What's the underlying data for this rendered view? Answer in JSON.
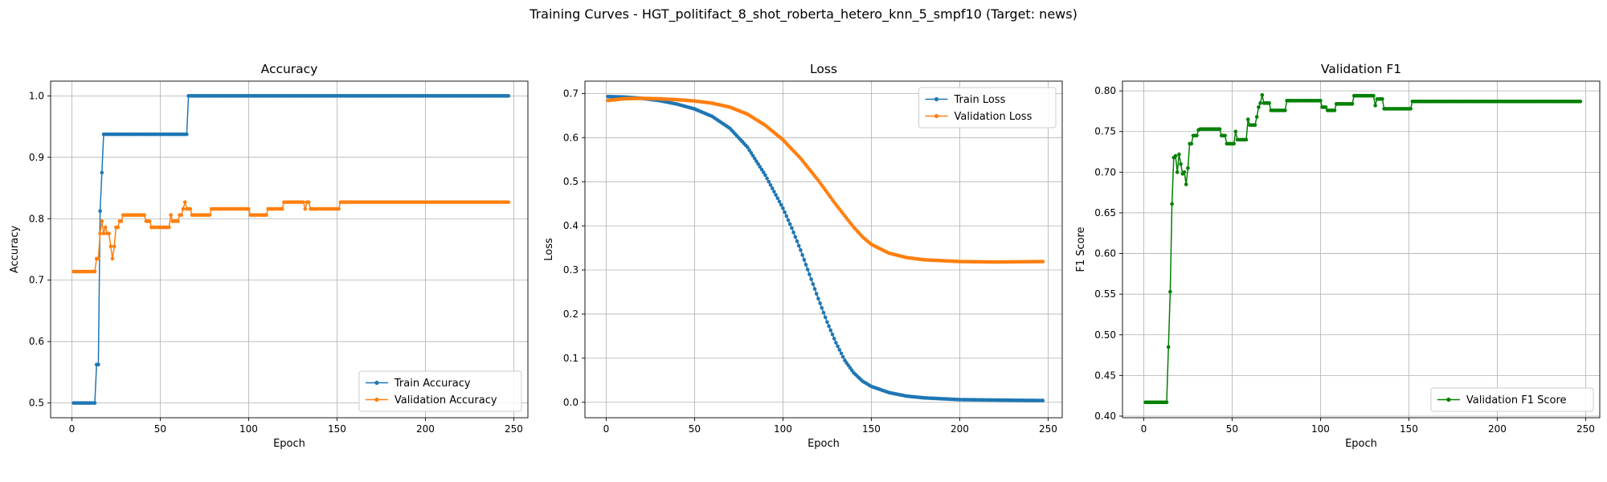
{
  "figure": {
    "suptitle": "Training Curves - HGT_politifact_8_shot_roberta_hetero_knn_5_smpf10 (Target: news)"
  },
  "chart_data": [
    {
      "type": "line",
      "title": "Accuracy",
      "xlabel": "Epoch",
      "ylabel": "Accuracy",
      "xlim": [
        -12,
        258
      ],
      "ylim": [
        0.476,
        1.024
      ],
      "xticks": [
        0,
        50,
        100,
        150,
        200,
        250
      ],
      "yticks": [
        0.5,
        0.6,
        0.7,
        0.8,
        0.9,
        1.0
      ],
      "ytick_decimals": 1,
      "grid": true,
      "legend_position": "lower-right",
      "epochs": 247,
      "series": [
        {
          "name": "Train Accuracy",
          "color": "#1f77b4",
          "segments": [
            [
              1,
              0.5
            ],
            [
              13,
              0.5
            ],
            [
              14,
              0.5625
            ],
            [
              15,
              0.5625
            ],
            [
              16,
              0.8125
            ],
            [
              17,
              0.875
            ],
            [
              18,
              0.9375
            ],
            [
              65,
              0.9375
            ],
            [
              66,
              1.0
            ],
            [
              247,
              1.0
            ]
          ]
        },
        {
          "name": "Validation Accuracy",
          "color": "#ff7f0e",
          "segments": [
            [
              1,
              0.714
            ],
            [
              13,
              0.714
            ],
            [
              14,
              0.735
            ],
            [
              15,
              0.735
            ],
            [
              16,
              0.776
            ],
            [
              17,
              0.796
            ],
            [
              18,
              0.776
            ],
            [
              19,
              0.786
            ],
            [
              20,
              0.776
            ],
            [
              22,
              0.755
            ],
            [
              23,
              0.735
            ],
            [
              24,
              0.755
            ],
            [
              25,
              0.786
            ],
            [
              27,
              0.796
            ],
            [
              29,
              0.806
            ],
            [
              41,
              0.806
            ],
            [
              42,
              0.796
            ],
            [
              45,
              0.786
            ],
            [
              55,
              0.786
            ],
            [
              56,
              0.806
            ],
            [
              57,
              0.796
            ],
            [
              61,
              0.806
            ],
            [
              63,
              0.816
            ],
            [
              64,
              0.827
            ],
            [
              65,
              0.816
            ],
            [
              68,
              0.806
            ],
            [
              78,
              0.806
            ],
            [
              79,
              0.816
            ],
            [
              100,
              0.816
            ],
            [
              101,
              0.806
            ],
            [
              110,
              0.806
            ],
            [
              111,
              0.816
            ],
            [
              119,
              0.816
            ],
            [
              120,
              0.827
            ],
            [
              131,
              0.827
            ],
            [
              132,
              0.816
            ],
            [
              133,
              0.827
            ],
            [
              135,
              0.816
            ],
            [
              151,
              0.816
            ],
            [
              152,
              0.827
            ],
            [
              247,
              0.827
            ]
          ]
        }
      ]
    },
    {
      "type": "line",
      "title": "Loss",
      "xlabel": "Epoch",
      "ylabel": "Loss",
      "xlim": [
        -12,
        258
      ],
      "ylim": [
        -0.035,
        0.728
      ],
      "xticks": [
        0,
        50,
        100,
        150,
        200,
        250
      ],
      "yticks": [
        0.0,
        0.1,
        0.2,
        0.3,
        0.4,
        0.5,
        0.6,
        0.7
      ],
      "ytick_decimals": 1,
      "grid": true,
      "legend_position": "upper-right",
      "epochs": 247,
      "series": [
        {
          "name": "Train Loss",
          "color": "#1f77b4",
          "curve": [
            [
              1,
              0.693
            ],
            [
              10,
              0.692
            ],
            [
              20,
              0.689
            ],
            [
              30,
              0.684
            ],
            [
              40,
              0.676
            ],
            [
              50,
              0.665
            ],
            [
              60,
              0.648
            ],
            [
              70,
              0.621
            ],
            [
              80,
              0.578
            ],
            [
              90,
              0.515
            ],
            [
              100,
              0.44
            ],
            [
              105,
              0.395
            ],
            [
              110,
              0.345
            ],
            [
              115,
              0.29
            ],
            [
              120,
              0.235
            ],
            [
              125,
              0.182
            ],
            [
              130,
              0.135
            ],
            [
              135,
              0.095
            ],
            [
              140,
              0.067
            ],
            [
              145,
              0.048
            ],
            [
              150,
              0.036
            ],
            [
              160,
              0.022
            ],
            [
              170,
              0.014
            ],
            [
              180,
              0.01
            ],
            [
              190,
              0.008
            ],
            [
              200,
              0.006
            ],
            [
              220,
              0.005
            ],
            [
              247,
              0.004
            ]
          ]
        },
        {
          "name": "Validation Loss",
          "color": "#ff7f0e",
          "curve": [
            [
              1,
              0.684
            ],
            [
              10,
              0.688
            ],
            [
              20,
              0.689
            ],
            [
              30,
              0.688
            ],
            [
              40,
              0.686
            ],
            [
              50,
              0.683
            ],
            [
              60,
              0.678
            ],
            [
              70,
              0.669
            ],
            [
              80,
              0.653
            ],
            [
              90,
              0.628
            ],
            [
              100,
              0.595
            ],
            [
              110,
              0.553
            ],
            [
              120,
              0.503
            ],
            [
              130,
              0.448
            ],
            [
              140,
              0.397
            ],
            [
              145,
              0.375
            ],
            [
              150,
              0.358
            ],
            [
              160,
              0.338
            ],
            [
              170,
              0.328
            ],
            [
              180,
              0.323
            ],
            [
              190,
              0.321
            ],
            [
              200,
              0.319
            ],
            [
              220,
              0.318
            ],
            [
              247,
              0.319
            ]
          ]
        }
      ]
    },
    {
      "type": "line",
      "title": "Validation F1",
      "xlabel": "Epoch",
      "ylabel": "F1 Score",
      "xlim": [
        -12,
        258
      ],
      "ylim": [
        0.398,
        0.812
      ],
      "xticks": [
        0,
        50,
        100,
        150,
        200,
        250
      ],
      "yticks": [
        0.4,
        0.45,
        0.5,
        0.55,
        0.6,
        0.65,
        0.7,
        0.75,
        0.8
      ],
      "ytick_decimals": 2,
      "grid": true,
      "legend_position": "lower-right",
      "epochs": 247,
      "series": [
        {
          "name": "Validation F1 Score",
          "color": "#008000",
          "segments": [
            [
              1,
              0.417
            ],
            [
              13,
              0.417
            ],
            [
              14,
              0.485
            ],
            [
              15,
              0.553
            ],
            [
              16,
              0.661
            ],
            [
              17,
              0.718
            ],
            [
              18,
              0.72
            ],
            [
              19,
              0.7
            ],
            [
              20,
              0.722
            ],
            [
              21,
              0.71
            ],
            [
              22,
              0.698
            ],
            [
              23,
              0.7
            ],
            [
              24,
              0.685
            ],
            [
              25,
              0.705
            ],
            [
              26,
              0.735
            ],
            [
              28,
              0.745
            ],
            [
              30,
              0.745
            ],
            [
              31,
              0.752
            ],
            [
              32,
              0.753
            ],
            [
              43,
              0.753
            ],
            [
              44,
              0.745
            ],
            [
              47,
              0.735
            ],
            [
              51,
              0.735
            ],
            [
              52,
              0.75
            ],
            [
              53,
              0.74
            ],
            [
              58,
              0.74
            ],
            [
              59,
              0.765
            ],
            [
              60,
              0.758
            ],
            [
              64,
              0.768
            ],
            [
              65,
              0.78
            ],
            [
              66,
              0.785
            ],
            [
              67,
              0.795
            ],
            [
              68,
              0.785
            ],
            [
              71,
              0.785
            ],
            [
              72,
              0.776
            ],
            [
              80,
              0.776
            ],
            [
              81,
              0.788
            ],
            [
              100,
              0.788
            ],
            [
              101,
              0.78
            ],
            [
              104,
              0.776
            ],
            [
              108,
              0.776
            ],
            [
              109,
              0.784
            ],
            [
              118,
              0.784
            ],
            [
              119,
              0.794
            ],
            [
              130,
              0.794
            ],
            [
              131,
              0.782
            ],
            [
              132,
              0.79
            ],
            [
              135,
              0.79
            ],
            [
              136,
              0.778
            ],
            [
              151,
              0.778
            ],
            [
              152,
              0.787
            ],
            [
              247,
              0.787
            ]
          ]
        }
      ]
    }
  ]
}
